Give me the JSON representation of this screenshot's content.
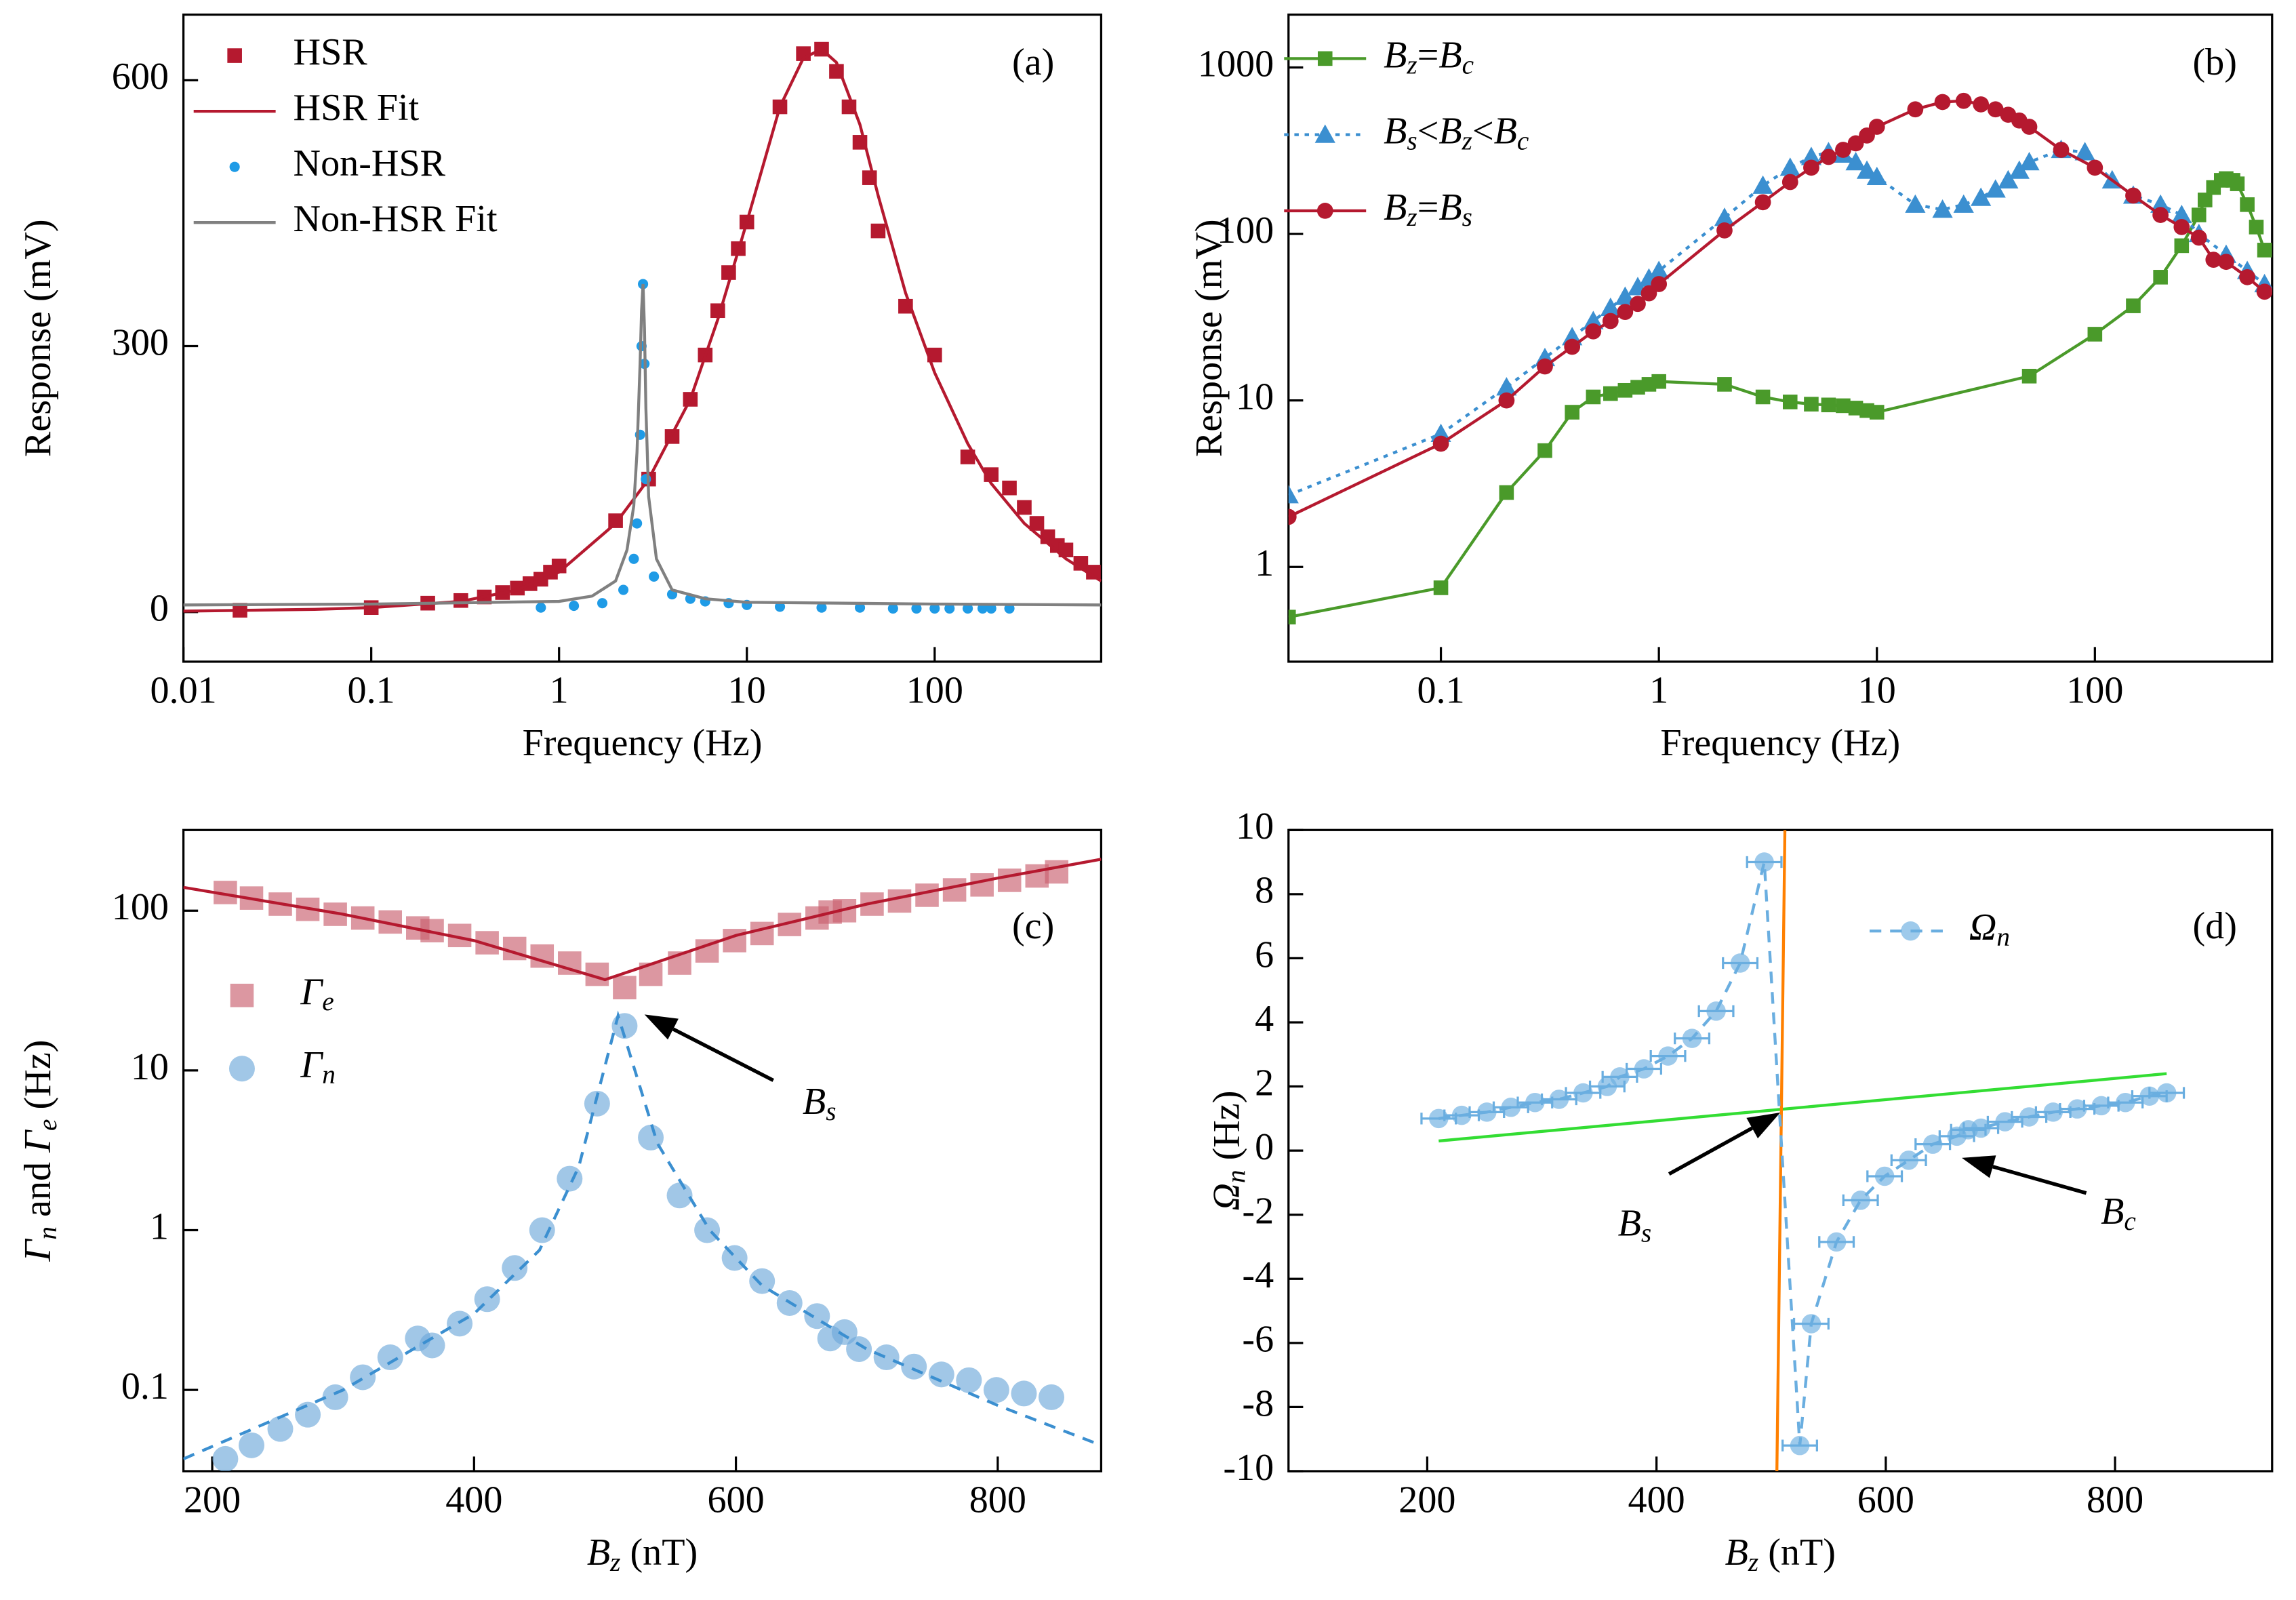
{
  "chart_data": [
    {
      "type": "line",
      "panel_label": "(a)",
      "x_label": "Frequency (Hz)",
      "y_label": "Response (mV)",
      "xlog": true,
      "ylog": false,
      "xlim": [
        0.01,
        770
      ],
      "ylim": [
        -56,
        674
      ],
      "xticks": [
        0.01,
        0.1,
        1,
        10,
        100
      ],
      "yticks": [
        0,
        300,
        600
      ],
      "grid": false,
      "legend": "upper left",
      "series": [
        {
          "name": "HSR",
          "color": "#b5192f",
          "marker": "square",
          "line": "none",
          "x": [
            0.02,
            0.1,
            0.2,
            0.3,
            0.4,
            0.5,
            0.6,
            0.7,
            0.8,
            0.9,
            1,
            2,
            3,
            4,
            5,
            6,
            7,
            8,
            9,
            10,
            15,
            20,
            25,
            30,
            35,
            40,
            45,
            50,
            70,
            100,
            150,
            200,
            250,
            300,
            350,
            400,
            450,
            500,
            600,
            700
          ],
          "values": [
            2,
            5,
            10,
            13,
            17,
            22,
            27,
            32,
            37,
            45,
            52,
            103,
            150,
            198,
            240,
            290,
            340,
            383,
            410,
            440,
            570,
            630,
            635,
            610,
            570,
            530,
            490,
            430,
            345,
            290,
            175,
            155,
            140,
            118,
            100,
            85,
            75,
            70,
            55,
            45
          ]
        },
        {
          "name": "HSR Fit",
          "color": "#b5192f",
          "marker": "none",
          "line": "solid",
          "x": [
            0.01,
            0.05,
            0.1,
            0.3,
            0.6,
            1,
            2,
            3,
            5,
            7,
            10,
            15,
            20,
            25,
            30,
            40,
            50,
            70,
            100,
            150,
            200,
            300,
            500,
            770
          ],
          "values": [
            1,
            3,
            5,
            12,
            25,
            45,
            100,
            150,
            240,
            330,
            440,
            570,
            625,
            635,
            620,
            550,
            470,
            360,
            270,
            190,
            145,
            100,
            60,
            35
          ]
        },
        {
          "name": "Non-HSR",
          "color": "#1f9be6",
          "marker": "dot",
          "line": "none",
          "x": [
            0.8,
            1.2,
            1.7,
            2.2,
            2.5,
            2.6,
            2.7,
            2.75,
            2.8,
            2.85,
            2.9,
            3.2,
            4,
            5,
            6,
            8,
            10,
            15,
            25,
            40,
            60,
            80,
            100,
            120,
            150,
            180,
            200,
            250
          ],
          "values": [
            5,
            7,
            10,
            25,
            60,
            100,
            200,
            300,
            370,
            280,
            150,
            40,
            20,
            15,
            12,
            10,
            8,
            6,
            5,
            5,
            4,
            4,
            4,
            4,
            4,
            4,
            4,
            4
          ]
        },
        {
          "name": "Non-HSR Fit",
          "color": "#808080",
          "marker": "none",
          "line": "solid",
          "x": [
            0.01,
            0.1,
            1,
            1.5,
            2,
            2.3,
            2.5,
            2.6,
            2.7,
            2.75,
            2.8,
            2.85,
            2.9,
            3,
            3.3,
            4,
            6,
            10,
            100,
            770
          ],
          "values": [
            8,
            9,
            12,
            18,
            35,
            70,
            120,
            180,
            280,
            340,
            370,
            320,
            230,
            130,
            60,
            25,
            15,
            11,
            9,
            8
          ]
        }
      ]
    },
    {
      "type": "line",
      "panel_label": "(b)",
      "x_label": "Frequency (Hz)",
      "y_label": "Response (mV)",
      "xlog": true,
      "ylog": true,
      "xlim": [
        0.02,
        650
      ],
      "ylim": [
        0.27,
        2075
      ],
      "xticks": [
        0.1,
        1,
        10,
        100
      ],
      "yticks": [
        1,
        10,
        100,
        1000
      ],
      "grid": false,
      "legend": "upper left",
      "series": [
        {
          "name": "Bz=Bc",
          "color": "#4a9a2a",
          "marker": "square",
          "line": "solid",
          "x": [
            0.02,
            0.1,
            0.2,
            0.3,
            0.4,
            0.5,
            0.6,
            0.7,
            0.8,
            0.9,
            1,
            2,
            3,
            4,
            5,
            6,
            7,
            8,
            9,
            10,
            50,
            100,
            150,
            200,
            250,
            300,
            320,
            350,
            380,
            400,
            430,
            450,
            500,
            550,
            600
          ],
          "values": [
            0.5,
            0.75,
            2.8,
            5,
            8.5,
            10.5,
            11,
            11.5,
            12,
            12.5,
            13,
            12.5,
            10.5,
            9.8,
            9.5,
            9.4,
            9.3,
            9,
            8.7,
            8.5,
            14,
            25,
            37,
            55,
            85,
            130,
            160,
            190,
            210,
            215,
            210,
            200,
            150,
            110,
            80
          ]
        },
        {
          "name": "Bs<Bz<Bc",
          "color": "#3b8fd0",
          "marker": "triangle",
          "line": "dot",
          "x": [
            0.02,
            0.1,
            0.2,
            0.3,
            0.4,
            0.5,
            0.6,
            0.7,
            0.8,
            0.9,
            1,
            2,
            3,
            4,
            5,
            6,
            7,
            8,
            9,
            10,
            15,
            20,
            25,
            30,
            35,
            40,
            45,
            50,
            70,
            90,
            120,
            150,
            200,
            250,
            300,
            400,
            500,
            600
          ],
          "values": [
            2.7,
            6.3,
            12,
            18,
            24,
            30,
            36,
            42,
            48,
            54,
            60,
            125,
            195,
            250,
            290,
            310,
            300,
            270,
            240,
            220,
            150,
            140,
            150,
            165,
            185,
            210,
            240,
            270,
            320,
            310,
            210,
            170,
            150,
            130,
            100,
            75,
            60,
            50
          ]
        },
        {
          "name": "Bz=Bs",
          "color": "#b5192f",
          "marker": "circle",
          "line": "solid",
          "x": [
            0.02,
            0.1,
            0.2,
            0.3,
            0.4,
            0.5,
            0.6,
            0.7,
            0.8,
            0.9,
            1,
            2,
            3,
            4,
            5,
            6,
            7,
            8,
            9,
            10,
            15,
            20,
            25,
            30,
            35,
            40,
            45,
            50,
            70,
            100,
            150,
            200,
            250,
            300,
            350,
            400,
            500,
            600
          ],
          "values": [
            2,
            5.5,
            10,
            16,
            21,
            26,
            30,
            34,
            38,
            44,
            50,
            105,
            155,
            205,
            250,
            290,
            320,
            350,
            390,
            440,
            560,
            620,
            630,
            600,
            560,
            520,
            480,
            440,
            320,
            250,
            170,
            130,
            110,
            95,
            70,
            68,
            55,
            45
          ]
        }
      ]
    },
    {
      "type": "line",
      "panel_label": "(c)",
      "x_label": "Bz (nT)",
      "y_label": "Γn and Γe (Hz)",
      "xlog": false,
      "ylog": true,
      "xlim": [
        178,
        879
      ],
      "ylim": [
        0.031,
        320
      ],
      "xticks": [
        200,
        400,
        600,
        800
      ],
      "yticks": [
        0.1,
        1,
        10,
        100
      ],
      "grid": false,
      "legend": "center left",
      "annotations": [
        "Bs"
      ],
      "series": [
        {
          "name": "Γe",
          "color": "#c9606f",
          "marker": "square",
          "line": "none",
          "x": [
            210,
            230,
            252,
            273,
            294,
            315,
            336,
            357,
            368,
            389,
            410,
            431,
            452,
            473,
            494,
            515,
            535,
            557,
            578,
            599,
            620,
            641,
            662,
            672,
            683,
            704,
            725,
            746,
            767,
            788,
            809,
            830,
            845
          ],
          "values": [
            130,
            120,
            110,
            102,
            95,
            90,
            85,
            78,
            75,
            70,
            63,
            58,
            52,
            47,
            40,
            33,
            40,
            47,
            56,
            65,
            72,
            82,
            90,
            98,
            100,
            110,
            115,
            125,
            135,
            145,
            155,
            165,
            175
          ]
        },
        {
          "name": "Γn",
          "color": "#6fa9da",
          "marker": "circle",
          "line": "none",
          "x": [
            210,
            230,
            252,
            273,
            294,
            315,
            336,
            357,
            368,
            389,
            410,
            431,
            452,
            473,
            494,
            515,
            535,
            557,
            578,
            599,
            620,
            641,
            662,
            672,
            683,
            694,
            715,
            736,
            757,
            778,
            799,
            820,
            841
          ],
          "values": [
            0.037,
            0.045,
            0.057,
            0.07,
            0.09,
            0.12,
            0.16,
            0.21,
            0.19,
            0.26,
            0.37,
            0.58,
            1.0,
            2.1,
            6.2,
            19,
            3.8,
            1.65,
            1.0,
            0.67,
            0.48,
            0.35,
            0.29,
            0.21,
            0.23,
            0.18,
            0.16,
            0.14,
            0.125,
            0.115,
            0.1,
            0.095,
            0.09
          ]
        },
        {
          "color": "#b5192f",
          "marker": "none",
          "line": "solid",
          "x": [
            178,
            300,
            400,
            500,
            520,
            600,
            700,
            800,
            879
          ],
          "values": [
            140,
            95,
            65,
            37,
            42,
            70,
            110,
            160,
            210
          ]
        },
        {
          "color": "#3b8fd0",
          "marker": "none",
          "line": "dash",
          "x": [
            178,
            300,
            400,
            450,
            480,
            510,
            540,
            580,
            620,
            700,
            800,
            879
          ],
          "values": [
            0.037,
            0.1,
            0.3,
            0.75,
            2.5,
            22,
            3.5,
            1.0,
            0.45,
            0.18,
            0.08,
            0.045
          ]
        }
      ]
    },
    {
      "type": "line",
      "panel_label": "(d)",
      "x_label": "Bz (nT)",
      "y_label": "Ωn (Hz)",
      "xlog": false,
      "ylog": false,
      "xlim": [
        79,
        937
      ],
      "ylim": [
        -10,
        10
      ],
      "xticks": [
        200,
        400,
        600,
        800
      ],
      "yticks": [
        -10,
        -8,
        -6,
        -4,
        -2,
        0,
        2,
        4,
        6,
        8,
        10
      ],
      "grid": false,
      "legend": "upper right",
      "annotations": [
        "Bs",
        "Bc"
      ],
      "series": [
        {
          "color": "#33dd33",
          "marker": "none",
          "line": "solid",
          "x": [
            210,
            845
          ],
          "values": [
            0.3,
            2.4
          ]
        },
        {
          "color": "#ff8000",
          "marker": "none",
          "line": "solid",
          "x": [
            505,
            512
          ],
          "values": [
            -10,
            10
          ]
        },
        {
          "name": "Ωn",
          "color": "#6aaee0",
          "marker": "circle",
          "line": "dash",
          "x": [
            210,
            230,
            252,
            273,
            294,
            315,
            336,
            357,
            368,
            389,
            410,
            431,
            452,
            473,
            494,
            525,
            535,
            557,
            578,
            599,
            620,
            641,
            662,
            672,
            683,
            704,
            725,
            746,
            767,
            788,
            809,
            830,
            845
          ],
          "values": [
            1.0,
            1.1,
            1.2,
            1.35,
            1.5,
            1.6,
            1.8,
            2.0,
            2.3,
            2.55,
            2.95,
            3.5,
            4.35,
            5.85,
            9.0,
            -9.2,
            -5.4,
            -2.85,
            -1.55,
            -0.8,
            -0.3,
            0.2,
            0.45,
            0.65,
            0.7,
            0.9,
            1.05,
            1.2,
            1.3,
            1.4,
            1.5,
            1.7,
            1.8
          ],
          "xerr": [
            15,
            15,
            15,
            15,
            15,
            15,
            15,
            15,
            15,
            15,
            15,
            15,
            15,
            15,
            15,
            15,
            15,
            15,
            15,
            15,
            15,
            15,
            15,
            15,
            15,
            15,
            15,
            15,
            15,
            15,
            15,
            15,
            15
          ]
        }
      ]
    }
  ]
}
